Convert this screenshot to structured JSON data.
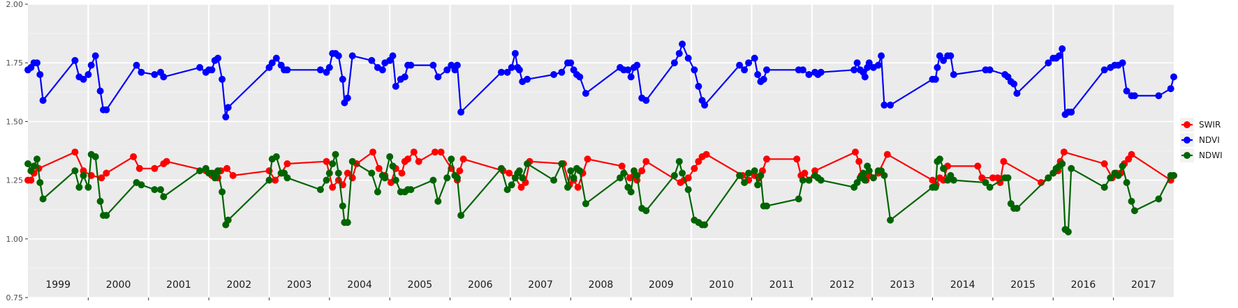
{
  "chart_data": {
    "type": "line",
    "title": "",
    "xlabel": "",
    "ylabel": "",
    "xlim": [
      1999,
      2018
    ],
    "ylim": [
      0.75,
      2.0
    ],
    "y_ticks": [
      0.75,
      1.0,
      1.25,
      1.5,
      1.75,
      2.0
    ],
    "y_tick_labels": [
      "0.75",
      "1.00",
      "1.25",
      "1.50",
      "1.75",
      "2.00"
    ],
    "year_labels": [
      "1999",
      "2000",
      "2001",
      "2002",
      "2003",
      "2004",
      "2005",
      "2006",
      "2007",
      "2008",
      "2009",
      "2010",
      "2011",
      "2012",
      "2013",
      "2014",
      "2015",
      "2016",
      "2017"
    ],
    "grid": true,
    "legend_position": "right",
    "series": [
      {
        "name": "SWIR",
        "color": "#ff0000",
        "x": [
          1999.0,
          1999.05,
          1999.1,
          1999.18,
          1999.78,
          1999.92,
          2000.05,
          2000.22,
          2000.3,
          2000.75,
          2000.85,
          2001.1,
          2001.25,
          2001.3,
          2001.95,
          2002.05,
          2002.1,
          2002.15,
          2002.2,
          2002.3,
          2002.4,
          2003.0,
          2003.1,
          2003.2,
          2003.3,
          2003.95,
          2004.05,
          2004.15,
          2004.22,
          2004.3,
          2004.38,
          2004.45,
          2004.72,
          2004.82,
          2004.92,
          2005.02,
          2005.1,
          2005.2,
          2005.25,
          2005.3,
          2005.4,
          2005.48,
          2005.75,
          2005.85,
          2006.02,
          2006.08,
          2006.12,
          2006.16,
          2006.22,
          2006.88,
          2006.98,
          2007.08,
          2007.18,
          2007.25,
          2007.32,
          2007.88,
          2007.98,
          2008.05,
          2008.12,
          2008.2,
          2008.28,
          2008.85,
          2008.98,
          2009.05,
          2009.1,
          2009.18,
          2009.25,
          2009.82,
          2009.88,
          2009.95,
          2010.05,
          2010.12,
          2010.18,
          2010.25,
          2010.85,
          2010.95,
          2011.05,
          2011.12,
          2011.18,
          2011.25,
          2011.75,
          2011.82,
          2011.88,
          2011.95,
          2012.05,
          2012.72,
          2012.78,
          2012.82,
          2012.9,
          2012.95,
          2013.02,
          2013.1,
          2013.25,
          2014.0,
          2014.06,
          2014.12,
          2014.18,
          2014.25,
          2014.75,
          2014.82,
          2015.0,
          2015.08,
          2015.12,
          2015.18,
          2015.8,
          2015.92,
          2016.0,
          2016.08,
          2016.12,
          2016.18,
          2016.85,
          2016.98,
          2017.05,
          2017.12,
          2017.18,
          2017.25,
          2017.3,
          2017.95,
          2018.0
        ],
        "values": [
          1.25,
          1.25,
          1.28,
          1.3,
          1.37,
          1.29,
          1.27,
          1.26,
          1.28,
          1.35,
          1.3,
          1.3,
          1.32,
          1.33,
          1.29,
          1.27,
          1.28,
          1.26,
          1.29,
          1.3,
          1.27,
          1.29,
          1.25,
          1.28,
          1.32,
          1.33,
          1.22,
          1.25,
          1.23,
          1.28,
          1.26,
          1.32,
          1.37,
          1.3,
          1.27,
          1.24,
          1.3,
          1.28,
          1.33,
          1.34,
          1.37,
          1.33,
          1.37,
          1.37,
          1.3,
          1.27,
          1.25,
          1.29,
          1.34,
          1.29,
          1.28,
          1.26,
          1.22,
          1.24,
          1.33,
          1.32,
          1.23,
          1.25,
          1.22,
          1.28,
          1.34,
          1.31,
          1.26,
          1.27,
          1.25,
          1.29,
          1.33,
          1.24,
          1.25,
          1.26,
          1.3,
          1.33,
          1.35,
          1.36,
          1.27,
          1.25,
          1.27,
          1.26,
          1.29,
          1.34,
          1.34,
          1.27,
          1.28,
          1.25,
          1.29,
          1.37,
          1.33,
          1.27,
          1.25,
          1.27,
          1.26,
          1.28,
          1.36,
          1.25,
          1.23,
          1.26,
          1.25,
          1.31,
          1.31,
          1.26,
          1.26,
          1.26,
          1.24,
          1.33,
          1.24,
          1.26,
          1.28,
          1.29,
          1.33,
          1.37,
          1.32,
          1.26,
          1.28,
          1.28,
          1.32,
          1.34,
          1.36,
          1.25,
          1.27
        ]
      },
      {
        "name": "NDVI",
        "color": "#0000ff",
        "x": [
          1999.0,
          1999.05,
          1999.1,
          1999.15,
          1999.2,
          1999.25,
          1999.78,
          1999.85,
          1999.92,
          2000.0,
          2000.05,
          2000.12,
          2000.2,
          2000.25,
          2000.3,
          2000.8,
          2000.88,
          2001.1,
          2001.2,
          2001.25,
          2001.85,
          2001.95,
          2002.0,
          2002.05,
          2002.1,
          2002.15,
          2002.22,
          2002.28,
          2002.32,
          2003.0,
          2003.05,
          2003.12,
          2003.2,
          2003.25,
          2003.3,
          2003.85,
          2003.95,
          2004.0,
          2004.05,
          2004.1,
          2004.15,
          2004.22,
          2004.25,
          2004.3,
          2004.38,
          2004.7,
          2004.8,
          2004.88,
          2004.92,
          2005.0,
          2005.05,
          2005.1,
          2005.18,
          2005.25,
          2005.3,
          2005.35,
          2005.72,
          2005.8,
          2005.95,
          2006.02,
          2006.08,
          2006.12,
          2006.18,
          2006.85,
          2006.95,
          2007.02,
          2007.08,
          2007.12,
          2007.15,
          2007.2,
          2007.28,
          2007.72,
          2007.85,
          2007.95,
          2008.0,
          2008.05,
          2008.1,
          2008.15,
          2008.25,
          2008.82,
          2008.88,
          2008.95,
          2009.0,
          2009.05,
          2009.1,
          2009.18,
          2009.25,
          2009.72,
          2009.8,
          2009.85,
          2009.95,
          2010.05,
          2010.12,
          2010.18,
          2010.22,
          2010.8,
          2010.88,
          2010.95,
          2011.05,
          2011.1,
          2011.15,
          2011.2,
          2011.25,
          2011.78,
          2011.85,
          2011.95,
          2012.05,
          2012.1,
          2012.15,
          2012.7,
          2012.75,
          2012.8,
          2012.85,
          2012.88,
          2012.92,
          2012.95,
          2013.02,
          2013.1,
          2013.15,
          2013.2,
          2013.3,
          2014.0,
          2014.05,
          2014.08,
          2014.12,
          2014.18,
          2014.25,
          2014.3,
          2014.35,
          2014.88,
          2014.95,
          2015.2,
          2015.25,
          2015.3,
          2015.35,
          2015.4,
          2015.92,
          2016.0,
          2016.05,
          2016.1,
          2016.15,
          2016.2,
          2016.25,
          2016.3,
          2016.85,
          2016.95,
          2017.02,
          2017.08,
          2017.15,
          2017.22,
          2017.3,
          2017.35,
          2017.75,
          2017.95,
          2018.0
        ],
        "values": [
          1.72,
          1.73,
          1.75,
          1.75,
          1.7,
          1.59,
          1.76,
          1.69,
          1.68,
          1.7,
          1.74,
          1.78,
          1.63,
          1.55,
          1.55,
          1.74,
          1.71,
          1.7,
          1.71,
          1.69,
          1.73,
          1.71,
          1.72,
          1.72,
          1.76,
          1.77,
          1.68,
          1.52,
          1.56,
          1.73,
          1.75,
          1.77,
          1.74,
          1.72,
          1.72,
          1.72,
          1.71,
          1.73,
          1.79,
          1.79,
          1.78,
          1.68,
          1.58,
          1.6,
          1.78,
          1.76,
          1.73,
          1.72,
          1.75,
          1.76,
          1.78,
          1.65,
          1.68,
          1.69,
          1.74,
          1.74,
          1.74,
          1.69,
          1.72,
          1.74,
          1.72,
          1.74,
          1.54,
          1.71,
          1.71,
          1.73,
          1.79,
          1.73,
          1.72,
          1.67,
          1.68,
          1.7,
          1.71,
          1.75,
          1.75,
          1.72,
          1.7,
          1.69,
          1.62,
          1.73,
          1.72,
          1.72,
          1.69,
          1.73,
          1.74,
          1.6,
          1.59,
          1.75,
          1.79,
          1.83,
          1.77,
          1.72,
          1.65,
          1.59,
          1.57,
          1.74,
          1.72,
          1.75,
          1.77,
          1.7,
          1.67,
          1.68,
          1.72,
          1.72,
          1.72,
          1.7,
          1.71,
          1.7,
          1.71,
          1.72,
          1.75,
          1.72,
          1.71,
          1.69,
          1.73,
          1.75,
          1.73,
          1.74,
          1.78,
          1.57,
          1.57,
          1.68,
          1.68,
          1.73,
          1.78,
          1.76,
          1.78,
          1.78,
          1.7,
          1.72,
          1.72,
          1.7,
          1.69,
          1.67,
          1.66,
          1.62,
          1.75,
          1.77,
          1.77,
          1.78,
          1.81,
          1.53,
          1.54,
          1.54,
          1.72,
          1.73,
          1.74,
          1.74,
          1.75,
          1.63,
          1.61,
          1.61,
          1.61,
          1.64,
          1.69
        ]
      },
      {
        "name": "NDWI",
        "color": "#006400",
        "x": [
          1999.0,
          1999.05,
          1999.1,
          1999.15,
          1999.2,
          1999.25,
          1999.78,
          1999.85,
          1999.92,
          2000.0,
          2000.05,
          2000.12,
          2000.2,
          2000.25,
          2000.3,
          2000.8,
          2000.88,
          2001.1,
          2001.2,
          2001.25,
          2001.85,
          2001.95,
          2002.0,
          2002.05,
          2002.1,
          2002.15,
          2002.22,
          2002.28,
          2002.32,
          2003.0,
          2003.05,
          2003.12,
          2003.2,
          2003.25,
          2003.3,
          2003.85,
          2003.95,
          2004.0,
          2004.05,
          2004.1,
          2004.15,
          2004.22,
          2004.25,
          2004.3,
          2004.38,
          2004.7,
          2004.8,
          2004.88,
          2004.92,
          2005.0,
          2005.05,
          2005.1,
          2005.18,
          2005.25,
          2005.3,
          2005.35,
          2005.72,
          2005.8,
          2005.95,
          2006.02,
          2006.08,
          2006.12,
          2006.18,
          2006.85,
          2006.95,
          2007.02,
          2007.08,
          2007.12,
          2007.15,
          2007.2,
          2007.28,
          2007.72,
          2007.85,
          2007.95,
          2008.0,
          2008.05,
          2008.1,
          2008.15,
          2008.25,
          2008.82,
          2008.88,
          2008.95,
          2009.0,
          2009.05,
          2009.1,
          2009.18,
          2009.25,
          2009.72,
          2009.8,
          2009.85,
          2009.95,
          2010.05,
          2010.12,
          2010.18,
          2010.22,
          2010.8,
          2010.88,
          2010.95,
          2011.05,
          2011.1,
          2011.15,
          2011.2,
          2011.25,
          2011.78,
          2011.85,
          2011.95,
          2012.05,
          2012.1,
          2012.15,
          2012.7,
          2012.75,
          2012.8,
          2012.85,
          2012.88,
          2012.92,
          2012.95,
          2013.02,
          2013.1,
          2013.15,
          2013.2,
          2013.3,
          2014.0,
          2014.05,
          2014.08,
          2014.12,
          2014.18,
          2014.25,
          2014.3,
          2014.35,
          2014.88,
          2014.95,
          2015.2,
          2015.25,
          2015.3,
          2015.35,
          2015.4,
          2015.92,
          2016.0,
          2016.05,
          2016.1,
          2016.15,
          2016.2,
          2016.25,
          2016.3,
          2016.85,
          2016.95,
          2017.02,
          2017.08,
          2017.15,
          2017.22,
          2017.3,
          2017.35,
          2017.75,
          2017.95,
          2018.0
        ],
        "values": [
          1.32,
          1.29,
          1.31,
          1.34,
          1.24,
          1.17,
          1.29,
          1.22,
          1.27,
          1.22,
          1.36,
          1.35,
          1.16,
          1.1,
          1.1,
          1.24,
          1.23,
          1.21,
          1.21,
          1.18,
          1.29,
          1.3,
          1.28,
          1.28,
          1.26,
          1.29,
          1.2,
          1.06,
          1.08,
          1.25,
          1.34,
          1.35,
          1.28,
          1.28,
          1.26,
          1.21,
          1.25,
          1.28,
          1.32,
          1.36,
          1.28,
          1.14,
          1.07,
          1.07,
          1.33,
          1.28,
          1.2,
          1.27,
          1.26,
          1.35,
          1.31,
          1.25,
          1.2,
          1.2,
          1.21,
          1.21,
          1.25,
          1.16,
          1.26,
          1.34,
          1.27,
          1.26,
          1.1,
          1.3,
          1.21,
          1.23,
          1.26,
          1.28,
          1.29,
          1.26,
          1.32,
          1.25,
          1.32,
          1.22,
          1.29,
          1.26,
          1.3,
          1.29,
          1.15,
          1.26,
          1.28,
          1.22,
          1.2,
          1.29,
          1.27,
          1.13,
          1.12,
          1.27,
          1.33,
          1.28,
          1.21,
          1.08,
          1.07,
          1.06,
          1.06,
          1.27,
          1.24,
          1.28,
          1.29,
          1.23,
          1.27,
          1.14,
          1.14,
          1.17,
          1.25,
          1.25,
          1.27,
          1.26,
          1.25,
          1.22,
          1.24,
          1.26,
          1.28,
          1.25,
          1.31,
          1.29,
          1.26,
          1.29,
          1.29,
          1.27,
          1.08,
          1.22,
          1.22,
          1.33,
          1.34,
          1.3,
          1.25,
          1.27,
          1.25,
          1.24,
          1.22,
          1.26,
          1.26,
          1.15,
          1.13,
          1.13,
          1.26,
          1.28,
          1.3,
          1.31,
          1.32,
          1.04,
          1.03,
          1.3,
          1.22,
          1.26,
          1.28,
          1.27,
          1.31,
          1.24,
          1.16,
          1.12,
          1.17,
          1.27,
          1.27
        ]
      }
    ]
  }
}
